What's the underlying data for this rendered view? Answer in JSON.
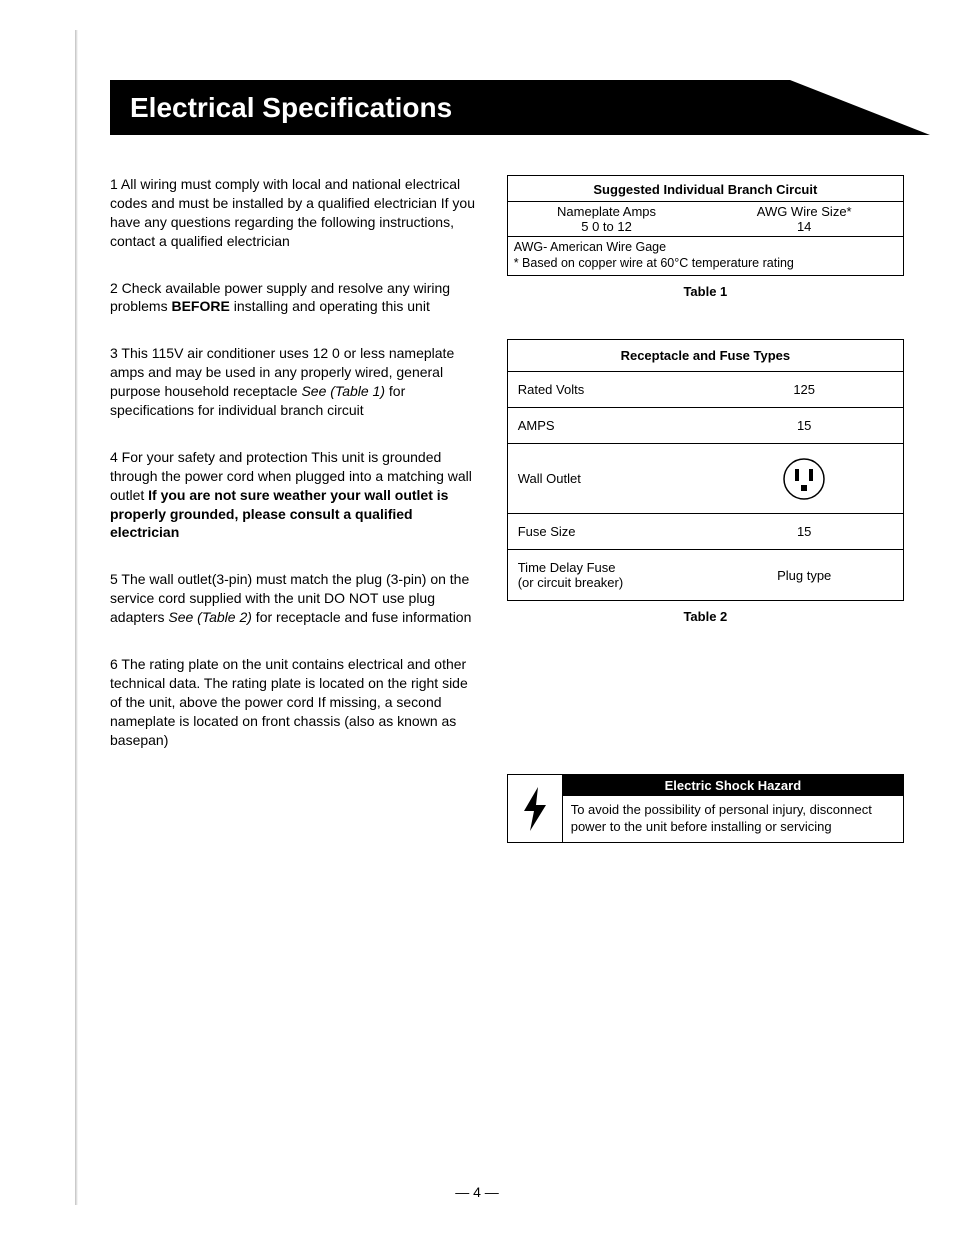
{
  "header": {
    "title": "Electrical Specifications",
    "band_color": "#000000",
    "text_color": "#ffffff",
    "title_fontsize": 28
  },
  "left_paragraphs": [
    {
      "num": "1",
      "html": "All wiring must comply with local and national electrical codes and must be installed by a qualified electrician  If you have any questions regarding the following instructions, contact a qualified electrician"
    },
    {
      "num": "2",
      "html": "Check available power supply and resolve any wiring problems <b>BEFORE</b> installing and operating this unit"
    },
    {
      "num": "3",
      "html": "This 115V air conditioner uses 12 0 or less nameplate amps and may be used in any properly wired, general purpose household receptacle  <i>See (Table 1)</i> for specifications for individual branch circuit"
    },
    {
      "num": "4",
      "html": "For your safety and protection  This unit is grounded through the power cord  when plugged into a matching wall outlet  <b>If you are not sure weather your wall outlet is properly grounded, please consult a qualified electrician</b>"
    },
    {
      "num": "5",
      "html": "The wall outlet(3-pin) must match the plug (3-pin) on the service cord supplied with the unit DO NOT use plug adapters  <i>See (Table 2)</i> for receptacle and fuse information"
    },
    {
      "num": "6",
      "html": "The rating plate on the unit contains electrical and other technical data. The rating plate is located on the right side of the unit, above the power cord If missing, a second nameplate is located on front chassis (also as known as basepan)"
    }
  ],
  "table1": {
    "title": "Suggested Individual Branch Circuit",
    "header_left": "Nameplate Amps",
    "header_right": "AWG  Wire Size*",
    "val_left": "5 0 to 12",
    "val_right": "14",
    "note1": "AWG- American Wire Gage",
    "note2": "* Based on copper wire at 60°C temperature rating",
    "caption": "Table 1"
  },
  "table2": {
    "title": "Receptacle and Fuse Types",
    "rows": [
      {
        "label": "Rated Volts",
        "value": "125"
      },
      {
        "label": "AMPS",
        "value": "15"
      },
      {
        "label": "Wall Outlet",
        "value": "__OUTLET__"
      },
      {
        "label": "Fuse Size",
        "value": "15"
      },
      {
        "label": "Time Delay Fuse\n(or circuit breaker)",
        "value": "Plug type"
      }
    ],
    "caption": "Table 2"
  },
  "hazard": {
    "title": "Electric Shock Hazard",
    "text": "To avoid the possibility of personal injury, disconnect power to the unit before installing or servicing",
    "title_bg": "#000000",
    "title_color": "#ffffff"
  },
  "page_number": "— 4 —",
  "body_fontsize": 14,
  "text_color": "#000000",
  "background_color": "#ffffff"
}
